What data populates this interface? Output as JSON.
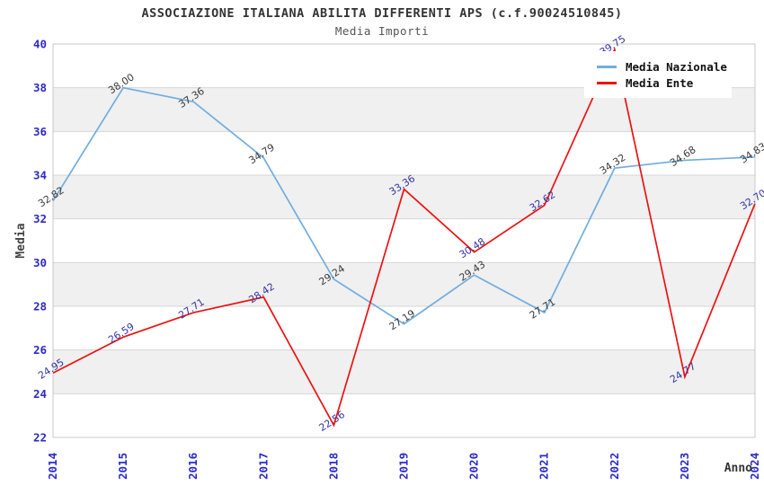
{
  "header": {
    "title": "ASSOCIAZIONE ITALIANA ABILITA DIFFERENTI APS (c.f.90024510845)",
    "subtitle": "Media Importi"
  },
  "axes": {
    "y_label": "Media",
    "x_label": "Anno",
    "y_ticks": [
      40,
      38,
      36,
      34,
      32,
      30,
      28,
      26,
      24,
      22
    ],
    "x_ticks": [
      "2014",
      "2015",
      "2016",
      "2017",
      "2018",
      "2019",
      "2020",
      "2021",
      "2022",
      "2023",
      "2024"
    ]
  },
  "legend": {
    "items": [
      {
        "label": "Media Nazionale",
        "color": "#70ade0"
      },
      {
        "label": "Media Ente",
        "color": "#ee1111"
      }
    ]
  },
  "colors": {
    "tick_blue": "#2a2ac8",
    "band_gray": "#f0f0f0",
    "gridline": "#d6d6d6",
    "frame": "#c9c9c9"
  },
  "chart_data": {
    "type": "line",
    "title": "ASSOCIAZIONE ITALIANA ABILITA DIFFERENTI APS (c.f.90024510845)",
    "subtitle": "Media Importi",
    "xlabel": "Anno",
    "ylabel": "Media",
    "x": [
      "2014",
      "2015",
      "2016",
      "2017",
      "2018",
      "2019",
      "2020",
      "2021",
      "2022",
      "2023",
      "2024"
    ],
    "ylim": [
      22,
      40
    ],
    "y_tick_step": 2,
    "grid": true,
    "legend_position": "top-right",
    "bands": [
      [
        24,
        26
      ],
      [
        28,
        30
      ],
      [
        32,
        34
      ],
      [
        36,
        38
      ]
    ],
    "series": [
      {
        "name": "Media Nazionale",
        "color": "#70ade0",
        "label_color": "#3a3a3a",
        "values": [
          32.82,
          38.0,
          37.36,
          34.79,
          29.24,
          27.19,
          29.43,
          27.71,
          34.32,
          34.68,
          34.83
        ]
      },
      {
        "name": "Media Ente",
        "color": "#ee1111",
        "label_color": "#3333a8",
        "values": [
          24.95,
          26.59,
          27.71,
          28.42,
          22.56,
          33.36,
          30.48,
          32.62,
          39.75,
          24.77,
          32.7
        ]
      }
    ]
  }
}
